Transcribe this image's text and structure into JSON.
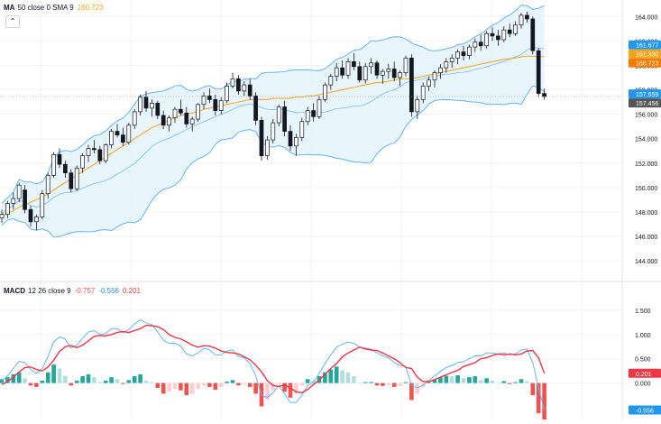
{
  "ma_legend": {
    "name": "MA",
    "params": "50 close 0 SMA 9",
    "value": "160.723",
    "value_color": "#f7a21b"
  },
  "collapse_icon": "chevron-up-icon",
  "macd_legend": {
    "name": "MACD",
    "params": "12 26 close 9",
    "hist_value": "-0.757",
    "macd_value": "-0.556",
    "signal_value": "0.201",
    "hist_color": "#ef5350",
    "macd_color": "#2196f3",
    "signal_color": "#f23645"
  },
  "price_axis_ticks": [
    "164.000",
    "162.000",
    "160.000",
    "158.000",
    "156.000",
    "154.000",
    "152.000",
    "150.000",
    "148.000",
    "146.000",
    "144.000"
  ],
  "macd_axis_ticks": [
    "1.500",
    "1.000",
    "0.500",
    "0.000"
  ],
  "price_badges": [
    {
      "text": "161.677",
      "value": 161.677,
      "color": "#2196f3"
    },
    {
      "text": "161.330",
      "value": 161.33,
      "color": "#f7a21b"
    },
    {
      "text": "160.723",
      "value": 160.723,
      "color": "#f57c00"
    },
    {
      "text": "157.659",
      "value": 157.659,
      "color": "#2196f3"
    },
    {
      "text": "157.456",
      "value": 157.456,
      "color": "#555555"
    }
  ],
  "macd_badges": [
    {
      "text": "0.201",
      "value": 0.201,
      "color": "#f23645"
    },
    {
      "text": "-0.556",
      "value": -0.556,
      "color": "#2196f3"
    }
  ],
  "colors": {
    "up": "#26a69a",
    "down": "#ef5350",
    "candle": "#131722",
    "band_fill": "#e3f2fd",
    "band_line": "#64b5f6",
    "basis": "#42a5f5",
    "ma": "#f7a21b",
    "signal_line": "#f23645",
    "macd_line": "#64b5f6"
  },
  "chart_data": [
    {
      "type": "candlestick",
      "title": "",
      "ylim": [
        143.2,
        165.2
      ],
      "series": [
        {
          "name": "Price",
          "ohlc": [
            [
              147.5,
              148.2,
              147.1,
              147.8
            ],
            [
              147.8,
              148.9,
              147.5,
              148.7
            ],
            [
              148.7,
              149.6,
              148.2,
              149.1
            ],
            [
              149.1,
              150.4,
              148.8,
              150.2
            ],
            [
              149.8,
              150.2,
              147.9,
              148.2
            ],
            [
              148.2,
              148.5,
              146.8,
              147.2
            ],
            [
              147.2,
              147.8,
              146.5,
              147.6
            ],
            [
              147.6,
              149.8,
              147.4,
              149.5
            ],
            [
              149.5,
              151.2,
              149.1,
              151.0
            ],
            [
              151.0,
              152.9,
              150.8,
              152.7
            ],
            [
              152.7,
              153.2,
              151.6,
              151.9
            ],
            [
              151.9,
              152.2,
              150.8,
              151.2
            ],
            [
              151.2,
              151.5,
              149.6,
              149.9
            ],
            [
              149.9,
              151.8,
              149.7,
              151.6
            ],
            [
              151.6,
              152.8,
              151.2,
              152.6
            ],
            [
              152.6,
              153.5,
              152.1,
              153.2
            ],
            [
              153.2,
              153.9,
              152.8,
              153.1
            ],
            [
              153.1,
              153.4,
              151.9,
              152.2
            ],
            [
              152.2,
              153.6,
              152.0,
              153.5
            ],
            [
              153.5,
              154.8,
              153.2,
              154.6
            ],
            [
              154.6,
              155.2,
              154.1,
              154.3
            ],
            [
              154.3,
              154.9,
              153.4,
              153.7
            ],
            [
              153.7,
              155.3,
              153.5,
              155.1
            ],
            [
              155.1,
              156.4,
              154.8,
              156.2
            ],
            [
              156.2,
              157.6,
              155.9,
              157.4
            ],
            [
              157.4,
              157.9,
              156.2,
              156.5
            ],
            [
              156.5,
              157.2,
              155.8,
              156.9
            ],
            [
              156.9,
              157.1,
              155.6,
              155.9
            ],
            [
              155.9,
              156.3,
              154.8,
              155.1
            ],
            [
              155.1,
              155.9,
              154.6,
              155.7
            ],
            [
              155.7,
              156.6,
              155.3,
              156.4
            ],
            [
              156.4,
              157.2,
              155.9,
              156.1
            ],
            [
              156.1,
              156.6,
              154.9,
              155.2
            ],
            [
              155.2,
              155.8,
              154.6,
              155.6
            ],
            [
              155.6,
              156.9,
              155.4,
              156.8
            ],
            [
              156.8,
              157.8,
              156.4,
              157.5
            ],
            [
              157.5,
              158.1,
              156.9,
              157.2
            ],
            [
              157.2,
              157.6,
              155.9,
              156.3
            ],
            [
              156.3,
              157.4,
              156.0,
              157.1
            ],
            [
              157.1,
              158.6,
              156.9,
              158.3
            ],
            [
              158.3,
              159.4,
              158.1,
              158.9
            ],
            [
              158.9,
              159.2,
              157.6,
              157.9
            ],
            [
              157.9,
              158.7,
              157.5,
              158.4
            ],
            [
              158.4,
              158.9,
              157.2,
              157.5
            ],
            [
              157.5,
              157.8,
              155.1,
              155.5
            ],
            [
              155.5,
              155.8,
              152.2,
              152.6
            ],
            [
              152.6,
              154.2,
              152.3,
              153.9
            ],
            [
              153.9,
              155.6,
              153.6,
              155.3
            ],
            [
              155.3,
              156.8,
              155.0,
              156.6
            ],
            [
              156.6,
              157.1,
              154.2,
              154.6
            ],
            [
              154.6,
              155.1,
              153.0,
              153.4
            ],
            [
              153.4,
              154.4,
              152.6,
              154.1
            ],
            [
              154.1,
              155.7,
              153.8,
              155.4
            ],
            [
              155.4,
              156.6,
              155.1,
              156.3
            ],
            [
              156.3,
              156.9,
              155.4,
              155.8
            ],
            [
              155.8,
              157.5,
              155.6,
              157.2
            ],
            [
              157.2,
              158.6,
              157.0,
              158.4
            ],
            [
              158.4,
              159.3,
              158.0,
              159.1
            ],
            [
              159.1,
              160.2,
              158.7,
              159.8
            ],
            [
              159.8,
              160.4,
              158.9,
              159.2
            ],
            [
              159.2,
              160.6,
              158.9,
              160.3
            ],
            [
              160.3,
              161.0,
              159.6,
              159.9
            ],
            [
              159.9,
              160.3,
              158.6,
              158.8
            ],
            [
              158.8,
              160.2,
              158.5,
              159.9
            ],
            [
              159.9,
              160.6,
              159.3,
              160.2
            ],
            [
              160.2,
              160.4,
              158.9,
              159.2
            ],
            [
              159.2,
              159.7,
              158.5,
              159.5
            ],
            [
              159.5,
              160.1,
              158.9,
              159.7
            ],
            [
              159.7,
              160.3,
              158.7,
              159.0
            ],
            [
              159.0,
              159.6,
              158.3,
              159.4
            ],
            [
              159.4,
              160.8,
              159.1,
              160.6
            ],
            [
              160.6,
              160.9,
              155.8,
              156.2
            ],
            [
              156.2,
              157.5,
              155.6,
              157.2
            ],
            [
              157.2,
              158.6,
              156.9,
              158.3
            ],
            [
              158.3,
              159.1,
              157.9,
              158.8
            ],
            [
              158.8,
              159.6,
              158.2,
              159.4
            ],
            [
              159.4,
              160.1,
              158.9,
              159.8
            ],
            [
              159.8,
              160.6,
              159.4,
              160.3
            ],
            [
              160.3,
              160.9,
              159.8,
              160.6
            ],
            [
              160.6,
              161.3,
              160.1,
              161.1
            ],
            [
              161.1,
              161.6,
              160.4,
              160.8
            ],
            [
              160.8,
              161.7,
              160.5,
              161.5
            ],
            [
              161.5,
              162.2,
              161.1,
              161.9
            ],
            [
              161.9,
              162.5,
              161.2,
              161.6
            ],
            [
              161.6,
              162.8,
              161.4,
              162.6
            ],
            [
              162.6,
              163.1,
              162.0,
              162.4
            ],
            [
              162.4,
              162.9,
              161.6,
              162.1
            ],
            [
              162.1,
              163.2,
              161.9,
              162.9
            ],
            [
              162.9,
              163.4,
              162.3,
              162.6
            ],
            [
              162.6,
              163.6,
              162.4,
              163.3
            ],
            [
              163.3,
              164.3,
              163.0,
              164.1
            ],
            [
              164.1,
              164.4,
              163.5,
              163.8
            ],
            [
              163.8,
              164.0,
              160.9,
              161.2
            ],
            [
              161.2,
              161.4,
              157.4,
              157.7
            ],
            [
              157.7,
              158.1,
              157.2,
              157.456
            ]
          ]
        },
        {
          "name": "MA 50",
          "values": [
            147.6,
            147.9,
            148.1,
            148.4,
            148.6,
            148.8,
            149.0,
            149.2,
            149.5,
            149.8,
            150.1,
            150.4,
            150.7,
            151.0,
            151.3,
            151.6,
            151.9,
            152.2,
            152.5,
            152.8,
            153.1,
            153.4,
            153.7,
            154.0,
            154.3,
            154.6,
            154.9,
            155.1,
            155.3,
            155.5,
            155.7,
            155.9,
            156.0,
            156.1,
            156.2,
            156.4,
            156.5,
            156.6,
            156.7,
            156.8,
            156.9,
            157.0,
            157.1,
            157.2,
            157.2,
            157.2,
            157.2,
            157.3,
            157.3,
            157.3,
            157.3,
            157.4,
            157.4,
            157.5,
            157.5,
            157.6,
            157.7,
            157.8,
            157.9,
            158.0,
            158.1,
            158.2,
            158.3,
            158.4,
            158.5,
            158.6,
            158.6,
            158.7,
            158.8,
            158.9,
            158.9,
            158.9,
            159.0,
            159.1,
            159.2,
            159.3,
            159.4,
            159.5,
            159.6,
            159.7,
            159.8,
            159.9,
            160.0,
            160.1,
            160.2,
            160.3,
            160.4,
            160.5,
            160.55,
            160.6,
            160.7,
            160.75,
            160.75,
            160.73,
            160.723
          ]
        }
      ]
    },
    {
      "type": "bar",
      "title": "",
      "ylim": [
        -0.75,
        1.85
      ],
      "series": [
        {
          "name": "Histogram",
          "values": [
            0.08,
            0.12,
            0.18,
            0.22,
            0.1,
            -0.05,
            -0.08,
            0.05,
            0.22,
            0.38,
            0.3,
            0.15,
            -0.05,
            0.05,
            0.14,
            0.18,
            0.12,
            0.02,
            0.05,
            0.12,
            0.08,
            -0.02,
            0.06,
            0.14,
            0.18,
            0.05,
            0.02,
            -0.1,
            -0.22,
            -0.18,
            -0.12,
            -0.15,
            -0.25,
            -0.22,
            -0.12,
            -0.05,
            -0.08,
            -0.14,
            -0.08,
            0.03,
            0.06,
            -0.05,
            -0.02,
            -0.08,
            -0.22,
            -0.48,
            -0.35,
            -0.15,
            -0.02,
            -0.18,
            -0.3,
            -0.22,
            -0.05,
            0.08,
            0.05,
            0.14,
            0.22,
            0.28,
            0.34,
            0.26,
            0.22,
            0.14,
            0.0,
            0.02,
            0.02,
            -0.05,
            -0.06,
            -0.04,
            -0.08,
            -0.06,
            0.02,
            -0.35,
            -0.22,
            -0.08,
            0.02,
            0.08,
            0.12,
            0.15,
            0.14,
            0.16,
            0.1,
            0.12,
            0.14,
            0.06,
            0.1,
            0.05,
            0.0,
            0.04,
            -0.02,
            0.02,
            0.08,
            0.04,
            -0.25,
            -0.62,
            -0.757
          ]
        },
        {
          "name": "MACD",
          "values": [
            0.05,
            0.15,
            0.3,
            0.45,
            0.42,
            0.28,
            0.2,
            0.3,
            0.55,
            0.85,
            0.95,
            0.9,
            0.72,
            0.78,
            0.92,
            1.05,
            1.08,
            1.0,
            1.02,
            1.12,
            1.12,
            1.04,
            1.1,
            1.22,
            1.3,
            1.24,
            1.2,
            1.06,
            0.88,
            0.82,
            0.82,
            0.76,
            0.6,
            0.56,
            0.62,
            0.72,
            0.68,
            0.58,
            0.58,
            0.66,
            0.68,
            0.55,
            0.52,
            0.4,
            0.15,
            -0.25,
            -0.3,
            -0.2,
            -0.05,
            -0.22,
            -0.4,
            -0.4,
            -0.25,
            -0.05,
            0.02,
            0.2,
            0.4,
            0.58,
            0.74,
            0.8,
            0.84,
            0.82,
            0.74,
            0.72,
            0.7,
            0.62,
            0.56,
            0.52,
            0.42,
            0.36,
            0.34,
            -0.05,
            -0.1,
            -0.05,
            0.05,
            0.15,
            0.24,
            0.32,
            0.36,
            0.42,
            0.44,
            0.5,
            0.56,
            0.56,
            0.62,
            0.62,
            0.6,
            0.62,
            0.58,
            0.6,
            0.68,
            0.7,
            0.42,
            -0.1,
            -0.556
          ]
        },
        {
          "name": "Signal",
          "values": [
            -0.03,
            0.03,
            0.12,
            0.23,
            0.32,
            0.33,
            0.28,
            0.25,
            0.33,
            0.47,
            0.65,
            0.75,
            0.77,
            0.73,
            0.78,
            0.87,
            0.96,
            0.98,
            0.97,
            1.0,
            1.04,
            1.06,
            1.04,
            1.08,
            1.12,
            1.19,
            1.18,
            1.16,
            1.1,
            1.0,
            0.94,
            0.91,
            0.85,
            0.78,
            0.74,
            0.77,
            0.76,
            0.72,
            0.66,
            0.63,
            0.62,
            0.6,
            0.54,
            0.48,
            0.37,
            0.23,
            0.05,
            -0.05,
            -0.07,
            -0.04,
            -0.1,
            -0.18,
            -0.2,
            -0.13,
            -0.03,
            0.06,
            0.18,
            0.3,
            0.4,
            0.54,
            0.62,
            0.68,
            0.74,
            0.7,
            0.68,
            0.67,
            0.62,
            0.56,
            0.5,
            0.42,
            0.32,
            0.3,
            0.12,
            0.03,
            0.03,
            0.07,
            0.12,
            0.17,
            0.22,
            0.26,
            0.34,
            0.38,
            0.42,
            0.5,
            0.52,
            0.57,
            0.6,
            0.58,
            0.6,
            0.58,
            0.6,
            0.66,
            0.67,
            0.52,
            0.201
          ]
        }
      ]
    }
  ]
}
